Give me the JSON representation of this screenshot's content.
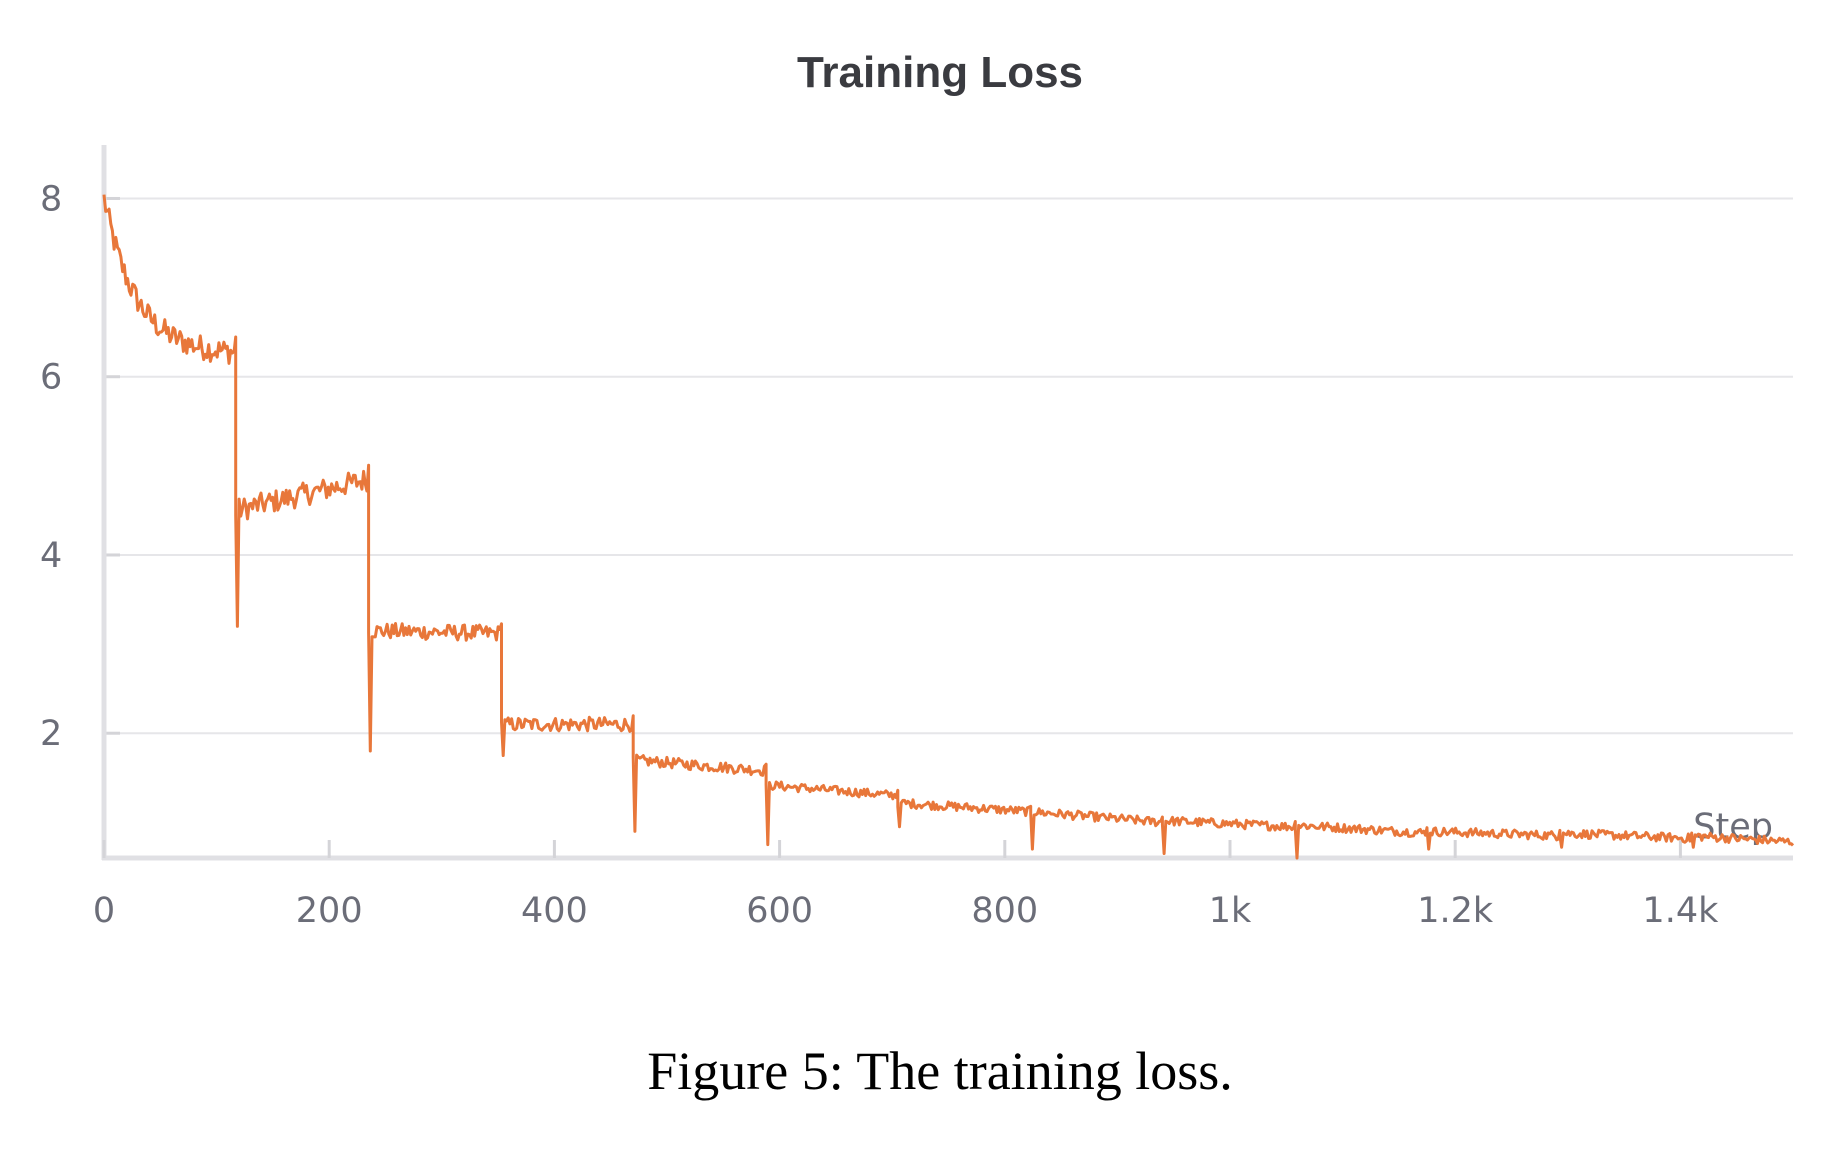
{
  "chart_data": {
    "type": "line",
    "title": "Training Loss",
    "xlabel": "Step",
    "ylabel": "",
    "xlim": [
      0,
      1500
    ],
    "ylim": [
      0.6,
      8.6
    ],
    "x_ticks": [
      0,
      200,
      400,
      600,
      800,
      1000,
      1200,
      1400
    ],
    "x_tick_labels": [
      "0",
      "200",
      "400",
      "600",
      "800",
      "1k",
      "1.2k",
      "1.4k"
    ],
    "y_ticks": [
      2,
      4,
      6,
      8
    ],
    "y_tick_labels": [
      "2",
      "4",
      "6",
      "8"
    ],
    "grid": "horizontal",
    "series": [
      {
        "color": "#e8773a",
        "segments": [
          {
            "x_start": 0,
            "x_end": 117,
            "y_start": 8.0,
            "y_end": 6.25,
            "noise": 0.14,
            "dip": null
          },
          {
            "x_start": 117,
            "x_end": 235,
            "y_start": 4.5,
            "y_end": 4.85,
            "noise": 0.13,
            "dip": 3.2
          },
          {
            "x_start": 235,
            "x_end": 353,
            "y_start": 3.15,
            "y_end": 3.12,
            "noise": 0.09,
            "dip": 1.8
          },
          {
            "x_start": 353,
            "x_end": 470,
            "y_start": 2.1,
            "y_end": 2.1,
            "noise": 0.08,
            "dip": 1.75
          },
          {
            "x_start": 470,
            "x_end": 588,
            "y_start": 1.7,
            "y_end": 1.58,
            "noise": 0.06,
            "dip": 0.9
          },
          {
            "x_start": 588,
            "x_end": 705,
            "y_start": 1.42,
            "y_end": 1.3,
            "noise": 0.05,
            "dip": 0.75
          },
          {
            "x_start": 705,
            "x_end": 823,
            "y_start": 1.22,
            "y_end": 1.12,
            "noise": 0.05,
            "dip": 0.95
          },
          {
            "x_start": 823,
            "x_end": 940,
            "y_start": 1.12,
            "y_end": 1.0,
            "noise": 0.05,
            "dip": 0.7
          },
          {
            "x_start": 940,
            "x_end": 1058,
            "y_start": 1.02,
            "y_end": 0.95,
            "noise": 0.05,
            "dip": 0.65
          },
          {
            "x_start": 1058,
            "x_end": 1175,
            "y_start": 0.97,
            "y_end": 0.88,
            "noise": 0.05,
            "dip": 0.6
          },
          {
            "x_start": 1175,
            "x_end": 1293,
            "y_start": 0.9,
            "y_end": 0.85,
            "noise": 0.05,
            "dip": 0.7
          },
          {
            "x_start": 1293,
            "x_end": 1410,
            "y_start": 0.88,
            "y_end": 0.82,
            "noise": 0.05,
            "dip": 0.72
          },
          {
            "x_start": 1410,
            "x_end": 1500,
            "y_start": 0.85,
            "y_end": 0.78,
            "noise": 0.05,
            "dip": 0.72
          }
        ]
      }
    ]
  },
  "caption": "Figure 5: The training loss."
}
